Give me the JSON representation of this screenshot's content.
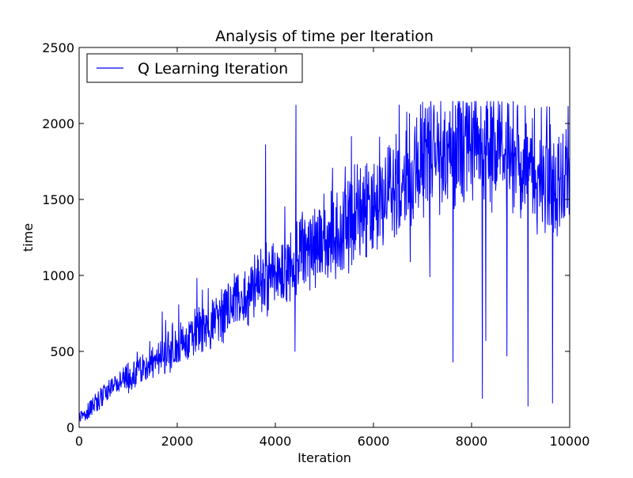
{
  "chart_data": {
    "type": "line",
    "title": "Analysis of time per Iteration",
    "xlabel": "Iteration",
    "ylabel": "time",
    "xlim": [
      0,
      10000
    ],
    "ylim": [
      0,
      2500
    ],
    "x_ticks": [
      0,
      2000,
      4000,
      6000,
      8000,
      10000
    ],
    "y_ticks": [
      0,
      500,
      1000,
      1500,
      2000,
      2500
    ],
    "grid": false,
    "legend_position": "top-left",
    "series": [
      {
        "name": "Q Learning Iteration",
        "color": "#0000ff",
        "trend": {
          "x": [
            0,
            500,
            1000,
            2000,
            3000,
            4000,
            5000,
            6000,
            6500,
            7000,
            8000,
            8500,
            9000,
            9500,
            10000
          ],
          "y": [
            50,
            210,
            330,
            520,
            770,
            1000,
            1230,
            1450,
            1580,
            1750,
            1850,
            1800,
            1700,
            1620,
            1580
          ]
        },
        "spikes": [
          {
            "x": 4400,
            "y": 500
          },
          {
            "x": 6750,
            "y": 1090
          },
          {
            "x": 7150,
            "y": 990
          },
          {
            "x": 7620,
            "y": 430
          },
          {
            "x": 8220,
            "y": 190
          },
          {
            "x": 8290,
            "y": 570
          },
          {
            "x": 8720,
            "y": 470
          },
          {
            "x": 9150,
            "y": 140
          },
          {
            "x": 9650,
            "y": 160
          },
          {
            "x": 4420,
            "y": 2120
          },
          {
            "x": 3800,
            "y": 1860
          },
          {
            "x": 7000,
            "y": 2140
          },
          {
            "x": 8000,
            "y": 2140
          }
        ]
      }
    ]
  }
}
